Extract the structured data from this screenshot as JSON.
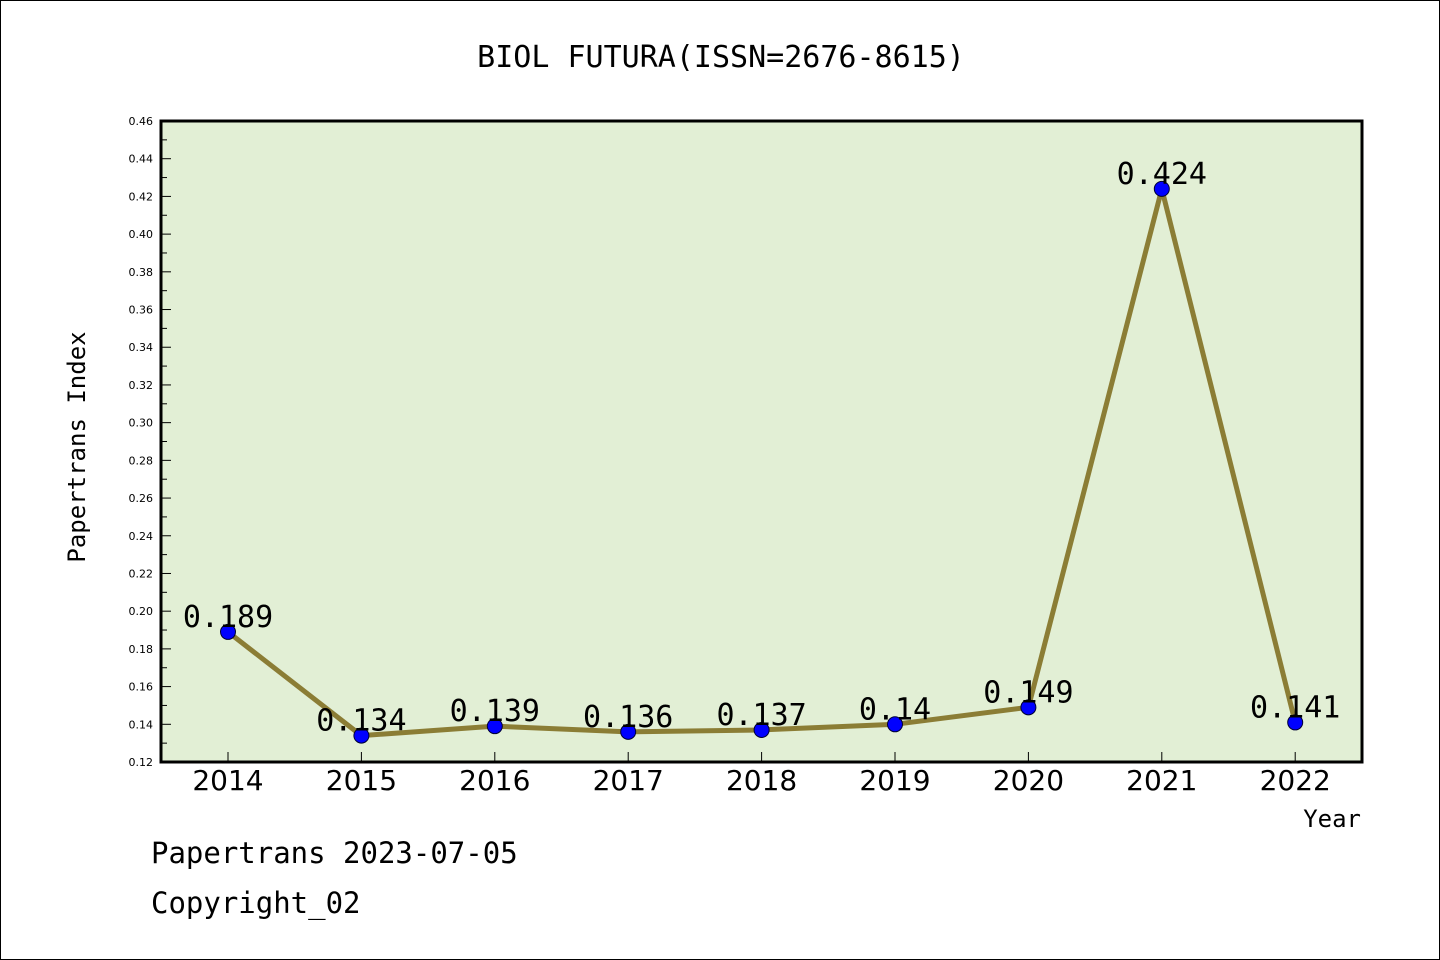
{
  "chart_data": {
    "type": "line",
    "title": "BIOL FUTURA(ISSN=2676-8615)",
    "xlabel": "Year",
    "ylabel": "Papertrans Index",
    "categories": [
      "2014",
      "2015",
      "2016",
      "2017",
      "2018",
      "2019",
      "2020",
      "2021",
      "2022"
    ],
    "values": [
      0.189,
      0.134,
      0.139,
      0.136,
      0.137,
      0.14,
      0.149,
      0.424,
      0.141
    ],
    "data_labels": [
      "0.189",
      "0.134",
      "0.139",
      "0.136",
      "0.137",
      "0.14",
      "0.149",
      "0.424",
      "0.141"
    ],
    "ylim": [
      0.12,
      0.46
    ],
    "yticks": [
      "0.12",
      "0.14",
      "0.16",
      "0.18",
      "0.20",
      "0.22",
      "0.24",
      "0.26",
      "0.28",
      "0.30",
      "0.32",
      "0.34",
      "0.36",
      "0.38",
      "0.40",
      "0.42",
      "0.44",
      "0.46"
    ],
    "grid": false,
    "colors": {
      "plot_background": "#e2efd5",
      "line": "#8b7d35",
      "marker": "#0000ff"
    }
  },
  "footer": {
    "line1": "Papertrans 2023-07-05",
    "line2": "Copyright_02"
  }
}
